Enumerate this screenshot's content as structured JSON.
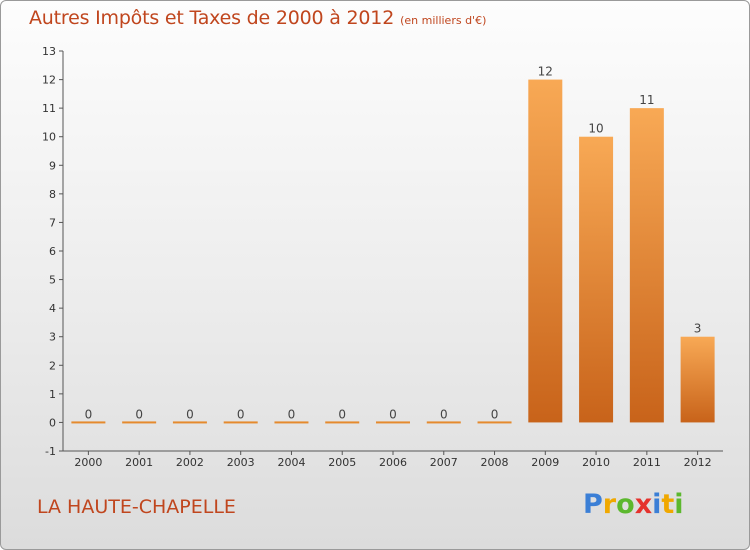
{
  "header": {
    "title": "Autres Impôts et Taxes de 2000 à 2012",
    "unit": "(en milliers d'€)"
  },
  "footer": {
    "commune": "LA HAUTE-CHAPELLE",
    "logo_letters": [
      {
        "ch": "P",
        "color": "#3b7fd6"
      },
      {
        "ch": "r",
        "color": "#f0a800"
      },
      {
        "ch": "o",
        "color": "#5cb82e"
      },
      {
        "ch": "x",
        "color": "#e5322d"
      },
      {
        "ch": "i",
        "color": "#3b7fd6"
      },
      {
        "ch": "t",
        "color": "#f0a800"
      },
      {
        "ch": "i",
        "color": "#5cb82e"
      }
    ]
  },
  "chart_data": {
    "type": "bar",
    "categories": [
      "2000",
      "2001",
      "2002",
      "2003",
      "2004",
      "2005",
      "2006",
      "2007",
      "2008",
      "2009",
      "2010",
      "2011",
      "2012"
    ],
    "values": [
      0,
      0,
      0,
      0,
      0,
      0,
      0,
      0,
      0,
      12,
      10,
      11,
      3
    ],
    "data_labels": [
      "0",
      "0",
      "0",
      "0",
      "0",
      "0",
      "0",
      "0",
      "0",
      "12",
      "10",
      "11",
      "3"
    ],
    "yticks": [
      -1,
      0,
      1,
      2,
      3,
      4,
      5,
      6,
      7,
      8,
      9,
      10,
      11,
      12,
      13
    ],
    "ylim": [
      -1,
      13
    ],
    "xlabel": "",
    "ylabel": "",
    "bar_color": "#e58a2d",
    "bar_color_light": "#f8a955",
    "bar_color_dark": "#c8631a",
    "label_color": "#444444"
  }
}
